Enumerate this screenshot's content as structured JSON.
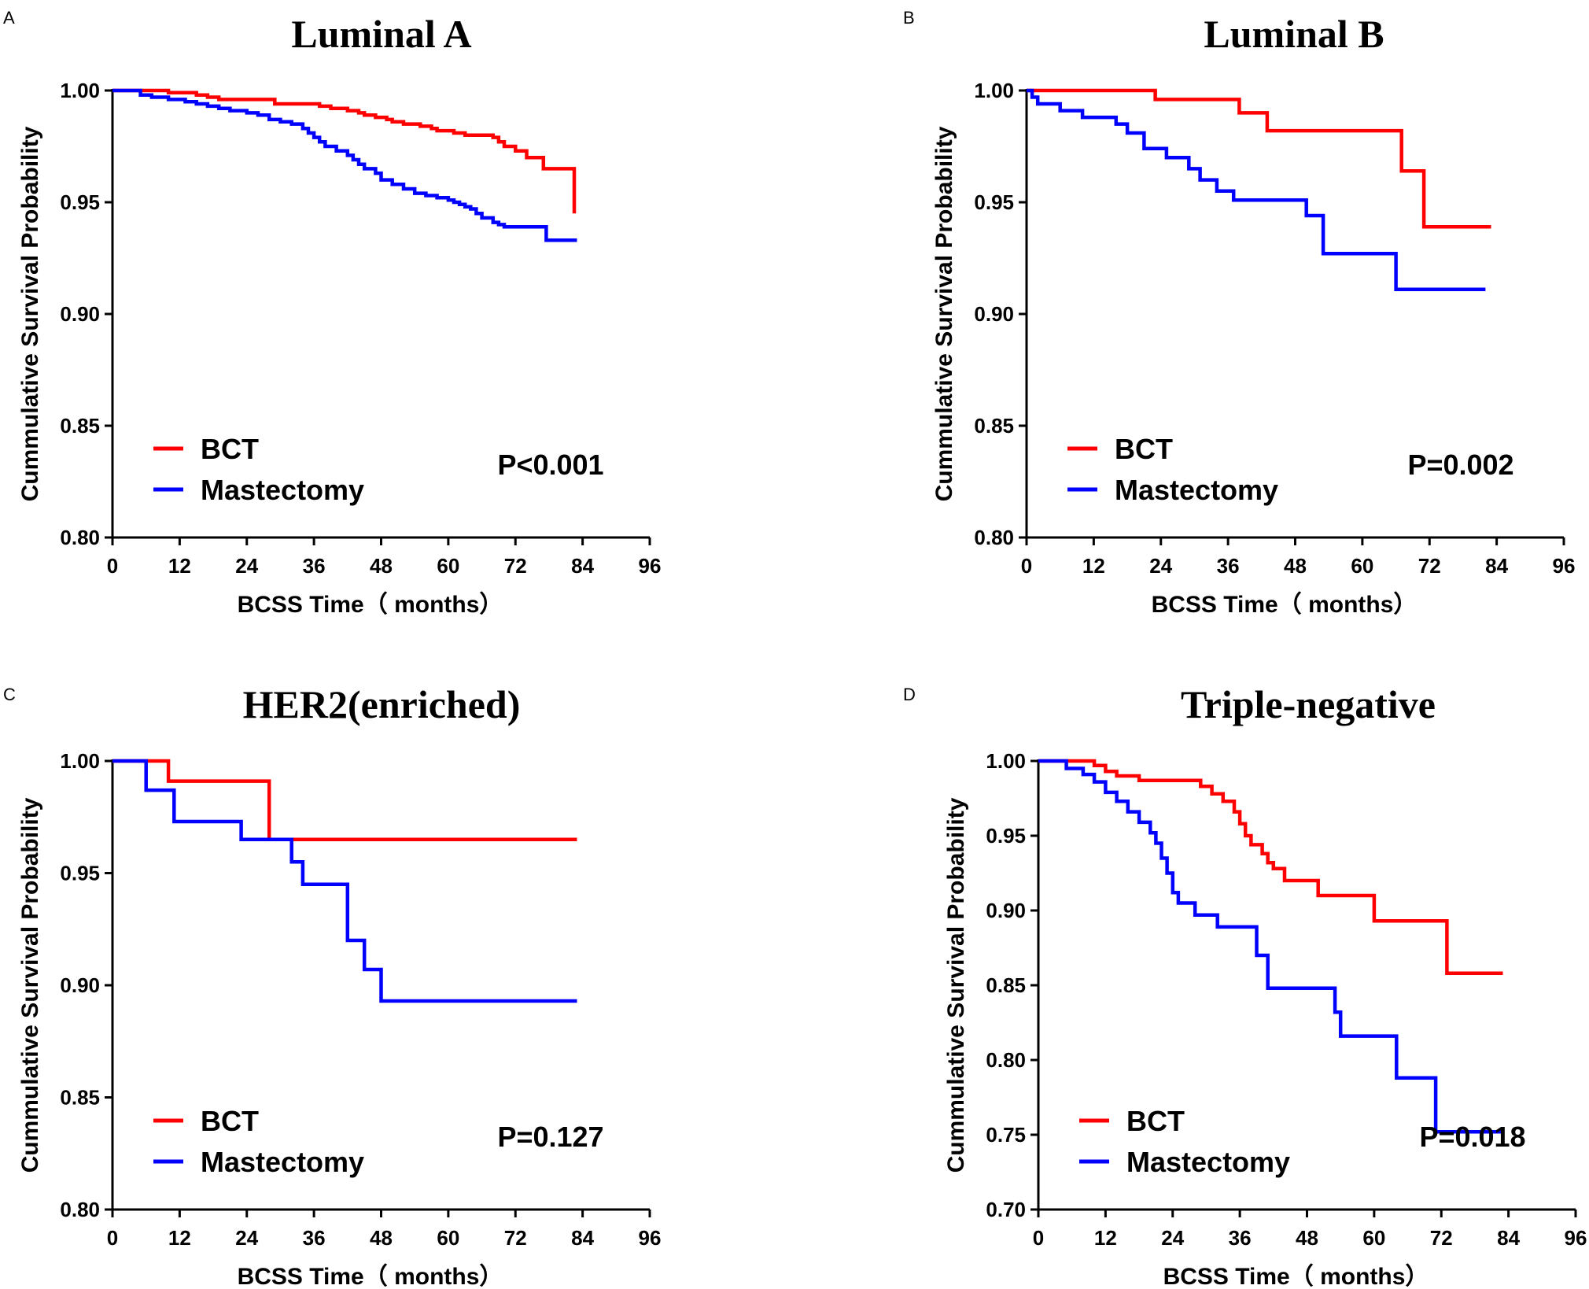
{
  "chart_data": [
    {
      "type": "line",
      "subtype": "kaplan-meier-step",
      "panel": "A",
      "title": "Luminal A",
      "xlabel": "BCSS Time（ months）",
      "ylabel": "Cummulative Survival Probability",
      "xlim": [
        0,
        96
      ],
      "ylim": [
        0.8,
        1.0
      ],
      "xticks": [
        0,
        12,
        24,
        36,
        48,
        60,
        72,
        84,
        96
      ],
      "yticks": [
        "0.80",
        "0.85",
        "0.90",
        "0.95",
        "1.00"
      ],
      "legend_position": "bottom-left",
      "p_value": "P<0.001",
      "series": [
        {
          "name": "BCT",
          "color": "#ff0000",
          "points": [
            [
              0,
              1.0
            ],
            [
              9,
              1.0
            ],
            [
              10,
              0.999
            ],
            [
              14,
              0.999
            ],
            [
              15,
              0.998
            ],
            [
              17,
              0.997
            ],
            [
              19,
              0.996
            ],
            [
              27,
              0.996
            ],
            [
              29,
              0.994
            ],
            [
              36,
              0.994
            ],
            [
              37,
              0.993
            ],
            [
              39,
              0.992
            ],
            [
              42,
              0.991
            ],
            [
              44,
              0.99
            ],
            [
              45,
              0.989
            ],
            [
              47,
              0.988
            ],
            [
              49,
              0.987
            ],
            [
              50,
              0.986
            ],
            [
              52,
              0.985
            ],
            [
              55,
              0.984
            ],
            [
              57,
              0.983
            ],
            [
              58,
              0.982
            ],
            [
              61,
              0.981
            ],
            [
              63,
              0.98
            ],
            [
              65,
              0.98
            ],
            [
              68,
              0.979
            ],
            [
              69,
              0.977
            ],
            [
              70,
              0.975
            ],
            [
              72,
              0.973
            ],
            [
              73,
              0.973
            ],
            [
              74,
              0.97
            ],
            [
              76,
              0.97
            ],
            [
              77,
              0.965
            ],
            [
              82,
              0.965
            ],
            [
              82.5,
              0.945
            ]
          ]
        },
        {
          "name": "Mastectomy",
          "color": "#0000ff",
          "points": [
            [
              0,
              1.0
            ],
            [
              5,
              0.998
            ],
            [
              7,
              0.997
            ],
            [
              10,
              0.996
            ],
            [
              13,
              0.995
            ],
            [
              15,
              0.994
            ],
            [
              17,
              0.993
            ],
            [
              19,
              0.992
            ],
            [
              21,
              0.991
            ],
            [
              24,
              0.99
            ],
            [
              26,
              0.989
            ],
            [
              28,
              0.987
            ],
            [
              30,
              0.986
            ],
            [
              32,
              0.985
            ],
            [
              34,
              0.983
            ],
            [
              35,
              0.981
            ],
            [
              36,
              0.979
            ],
            [
              37,
              0.977
            ],
            [
              38,
              0.975
            ],
            [
              40,
              0.973
            ],
            [
              42,
              0.971
            ],
            [
              43,
              0.969
            ],
            [
              44,
              0.967
            ],
            [
              45,
              0.965
            ],
            [
              47,
              0.963
            ],
            [
              48,
              0.96
            ],
            [
              50,
              0.958
            ],
            [
              52,
              0.956
            ],
            [
              54,
              0.954
            ],
            [
              56,
              0.953
            ],
            [
              58,
              0.952
            ],
            [
              60,
              0.951
            ],
            [
              61,
              0.95
            ],
            [
              62,
              0.949
            ],
            [
              63,
              0.948
            ],
            [
              64,
              0.947
            ],
            [
              65,
              0.945
            ],
            [
              66,
              0.943
            ],
            [
              68,
              0.941
            ],
            [
              69,
              0.94
            ],
            [
              70,
              0.939
            ],
            [
              77,
              0.939
            ],
            [
              77.5,
              0.933
            ],
            [
              83,
              0.933
            ]
          ]
        }
      ]
    },
    {
      "type": "line",
      "subtype": "kaplan-meier-step",
      "panel": "B",
      "title": "Luminal B",
      "xlabel": "BCSS Time（ months）",
      "ylabel": "Cummulative Survival Probability",
      "xlim": [
        0,
        96
      ],
      "ylim": [
        0.8,
        1.0
      ],
      "xticks": [
        0,
        12,
        24,
        36,
        48,
        60,
        72,
        84,
        96
      ],
      "yticks": [
        "0.80",
        "0.85",
        "0.90",
        "0.95",
        "1.00"
      ],
      "legend_position": "bottom-left",
      "p_value": "P=0.002",
      "series": [
        {
          "name": "BCT",
          "color": "#ff0000",
          "points": [
            [
              0,
              1.0
            ],
            [
              23,
              1.0
            ],
            [
              23,
              0.996
            ],
            [
              38,
              0.996
            ],
            [
              38,
              0.99
            ],
            [
              43,
              0.99
            ],
            [
              43,
              0.982
            ],
            [
              67,
              0.982
            ],
            [
              67,
              0.964
            ],
            [
              71,
              0.964
            ],
            [
              71,
              0.939
            ],
            [
              83,
              0.939
            ]
          ]
        },
        {
          "name": "Mastectomy",
          "color": "#0000ff",
          "points": [
            [
              0,
              1.0
            ],
            [
              1,
              0.997
            ],
            [
              2,
              0.994
            ],
            [
              6,
              0.991
            ],
            [
              10,
              0.988
            ],
            [
              16,
              0.985
            ],
            [
              18,
              0.981
            ],
            [
              21,
              0.974
            ],
            [
              25,
              0.97
            ],
            [
              29,
              0.965
            ],
            [
              31,
              0.96
            ],
            [
              34,
              0.955
            ],
            [
              37,
              0.951
            ],
            [
              50,
              0.951
            ],
            [
              50,
              0.944
            ],
            [
              53,
              0.944
            ],
            [
              53,
              0.927
            ],
            [
              66,
              0.927
            ],
            [
              66,
              0.911
            ],
            [
              82,
              0.911
            ]
          ]
        }
      ]
    },
    {
      "type": "line",
      "subtype": "kaplan-meier-step",
      "panel": "C",
      "title": "HER2(enriched)",
      "xlabel": "BCSS Time（ months）",
      "ylabel": "Cummulative Survival Probability",
      "xlim": [
        0,
        96
      ],
      "ylim": [
        0.8,
        1.0
      ],
      "xticks": [
        0,
        12,
        24,
        36,
        48,
        60,
        72,
        84,
        96
      ],
      "yticks": [
        "0.80",
        "0.85",
        "0.90",
        "0.95",
        "1.00"
      ],
      "legend_position": "bottom-left",
      "p_value": "P=0.127",
      "series": [
        {
          "name": "BCT",
          "color": "#ff0000",
          "points": [
            [
              0,
              1.0
            ],
            [
              10,
              1.0
            ],
            [
              10,
              0.991
            ],
            [
              28,
              0.991
            ],
            [
              28,
              0.965
            ],
            [
              83,
              0.965
            ]
          ]
        },
        {
          "name": "Mastectomy",
          "color": "#0000ff",
          "points": [
            [
              0,
              1.0
            ],
            [
              6,
              1.0
            ],
            [
              6,
              0.987
            ],
            [
              11,
              0.987
            ],
            [
              11,
              0.973
            ],
            [
              23,
              0.973
            ],
            [
              23,
              0.965
            ],
            [
              32,
              0.965
            ],
            [
              32,
              0.955
            ],
            [
              34,
              0.955
            ],
            [
              34,
              0.945
            ],
            [
              42,
              0.945
            ],
            [
              42,
              0.92
            ],
            [
              45,
              0.92
            ],
            [
              45,
              0.907
            ],
            [
              48,
              0.907
            ],
            [
              48,
              0.893
            ],
            [
              83,
              0.893
            ]
          ]
        }
      ]
    },
    {
      "type": "line",
      "subtype": "kaplan-meier-step",
      "panel": "D",
      "title": "Triple-negative",
      "xlabel": "BCSS Time（ months）",
      "ylabel": "Cummulative Survival Probability",
      "xlim": [
        0,
        96
      ],
      "ylim": [
        0.7,
        1.0
      ],
      "xticks": [
        0,
        12,
        24,
        36,
        48,
        60,
        72,
        84,
        96
      ],
      "yticks": [
        "0.70",
        "0.75",
        "0.80",
        "0.85",
        "0.90",
        "0.95",
        "1.00"
      ],
      "legend_position": "bottom-left",
      "p_value": "P=0.018",
      "series": [
        {
          "name": "BCT",
          "color": "#ff0000",
          "points": [
            [
              0,
              1.0
            ],
            [
              10,
              0.997
            ],
            [
              12,
              0.993
            ],
            [
              14,
              0.99
            ],
            [
              18,
              0.987
            ],
            [
              28,
              0.987
            ],
            [
              29,
              0.983
            ],
            [
              31,
              0.978
            ],
            [
              33,
              0.973
            ],
            [
              35,
              0.966
            ],
            [
              36,
              0.958
            ],
            [
              37,
              0.95
            ],
            [
              38,
              0.944
            ],
            [
              40,
              0.938
            ],
            [
              41,
              0.932
            ],
            [
              42,
              0.928
            ],
            [
              44,
              0.92
            ],
            [
              50,
              0.92
            ],
            [
              50,
              0.91
            ],
            [
              60,
              0.91
            ],
            [
              60,
              0.893
            ],
            [
              73,
              0.893
            ],
            [
              73,
              0.858
            ],
            [
              83,
              0.858
            ]
          ]
        },
        {
          "name": "Mastectomy",
          "color": "#0000ff",
          "points": [
            [
              0,
              1.0
            ],
            [
              5,
              0.995
            ],
            [
              8,
              0.991
            ],
            [
              10,
              0.986
            ],
            [
              12,
              0.979
            ],
            [
              14,
              0.973
            ],
            [
              16,
              0.966
            ],
            [
              18,
              0.959
            ],
            [
              20,
              0.952
            ],
            [
              21,
              0.945
            ],
            [
              22,
              0.935
            ],
            [
              23,
              0.925
            ],
            [
              24,
              0.912
            ],
            [
              25,
              0.905
            ],
            [
              28,
              0.897
            ],
            [
              32,
              0.889
            ],
            [
              39,
              0.889
            ],
            [
              39,
              0.87
            ],
            [
              41,
              0.87
            ],
            [
              41,
              0.848
            ],
            [
              53,
              0.848
            ],
            [
              53,
              0.832
            ],
            [
              54,
              0.832
            ],
            [
              54,
              0.816
            ],
            [
              64,
              0.816
            ],
            [
              64,
              0.788
            ],
            [
              71,
              0.788
            ],
            [
              71,
              0.752
            ],
            [
              83,
              0.752
            ]
          ]
        }
      ]
    }
  ]
}
